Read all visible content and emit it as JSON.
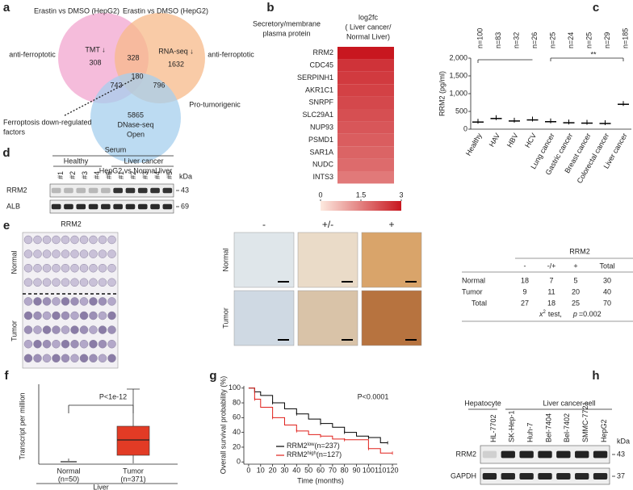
{
  "panels": {
    "a": {
      "label": "a",
      "set_left": "Erastin vs DMSO (HepG2)",
      "set_right": "Erastin vs DMSO (HepG2)",
      "left_role": "anti-ferroptotic",
      "right_role": "anti-ferroptotic",
      "left_name": "TMT ↓",
      "right_name": "RNA-seq ↓",
      "n_left": "308",
      "n_left_right": "328",
      "n_right": "1632",
      "n_center": "180",
      "n_left_bottom": "743",
      "n_right_bottom": "796",
      "n_bottom": "5865",
      "bottom_name": [
        "DNase-seq",
        "Open"
      ],
      "bottom_role": "Pro-tumorigenic",
      "set_bottom": "HepG2 vs Normal liver",
      "callout": [
        "Ferroptosis down-regulated",
        "factors"
      ]
    },
    "d": {
      "label": "d",
      "title": "Serum",
      "groups": [
        "Healthy",
        "Liver cancer"
      ],
      "lanes": [
        "#1",
        "#2",
        "#3",
        "#4",
        "#5",
        "#1",
        "#2",
        "#3",
        "#4",
        "#5"
      ],
      "unit": "kDa",
      "rows": [
        "RRM2",
        "ALB"
      ],
      "sizes": [
        "43",
        "69"
      ]
    },
    "e": {
      "label": "e",
      "tma_title": "RRM2",
      "tma_rows": [
        "Normal",
        "Tumor"
      ],
      "ihc_cols": [
        "-",
        "+/-",
        "+"
      ],
      "ihc_rows": [
        "Normal",
        "Tumor"
      ],
      "table": {
        "title": "RRM2",
        "columns": [
          "-",
          "-/+",
          "+",
          "Total"
        ],
        "rows": [
          [
            "Normal",
            18,
            7,
            5,
            30
          ],
          [
            "Tumor",
            9,
            11,
            20,
            40
          ],
          [
            "Total",
            27,
            18,
            25,
            70
          ]
        ],
        "note": {
          "stat": "x",
          "sup": "2",
          "test": "test,",
          "p": "p",
          "pval": "=0.002"
        }
      }
    },
    "f": {
      "label": "f",
      "ylabel": "Transcript per million",
      "annotation": "P<1e-12",
      "groups": [
        [
          "Normal",
          "(n=50)"
        ],
        [
          "Tumor",
          "(n=371)"
        ]
      ],
      "footer": "Liver"
    },
    "h": {
      "label": "h",
      "groups": [
        "Hepatocyte",
        "Liver cancer cell"
      ],
      "lanes": [
        "HL-7702",
        "SK-Hep-1",
        "Huh-7",
        "Bel-7404",
        "Bel-7402",
        "SMMC-7721",
        "HepG2"
      ],
      "unit": "kDa",
      "rows": [
        "RRM2",
        "GAPDH"
      ],
      "sizes": [
        "43",
        "37"
      ]
    }
  },
  "chart_data": [
    {
      "type": "heatmap",
      "panel_label": "b",
      "title": [
        "Secretory/membrane",
        "plasma protein"
      ],
      "colorbar_title": [
        "log2fc",
        "( Liver cancer/",
        "Normal Liver)"
      ],
      "categories": [
        "RRM2",
        "CDC45",
        "SERPINH1",
        "AKR1C1",
        "SNRPF",
        "SLC29A1",
        "NUP93",
        "PSMD1",
        "SAR1A",
        "NUDC",
        "INTS3"
      ],
      "values": [
        3,
        2.6,
        2.5,
        2.4,
        2.3,
        2.2,
        2.1,
        2.0,
        1.9,
        1.8,
        1.6
      ],
      "clim": [
        0,
        3
      ],
      "cticks": [
        0,
        1.5,
        3
      ],
      "colors": [
        "#fde9df",
        "#c8171f"
      ]
    },
    {
      "type": "dot",
      "panel_label": "c",
      "ylabel": "RRM2 (pg/ml)",
      "categories": [
        "Healthy",
        "HAV",
        "HBV",
        "HCV",
        "Lung cancer",
        "Gastric cancer",
        "Breast cancer",
        "Colorectal cancer",
        "Liver cancer"
      ],
      "n_labels": [
        "n=100",
        "n=83",
        "n=32",
        "n=26",
        "n=25",
        "n=24",
        "n=25",
        "n=29",
        "n=185"
      ],
      "values": [
        200,
        300,
        230,
        260,
        210,
        180,
        170,
        160,
        700
      ],
      "ylim": [
        0,
        2000
      ],
      "yticks": [
        0,
        500,
        {
          "value": 1000,
          "label": "1,000"
        },
        {
          "value": 1500,
          "label": "1,500"
        },
        {
          "value": 2000,
          "label": "2,000"
        }
      ],
      "annotation": "**",
      "color": "#000000"
    },
    {
      "type": "line",
      "panel_label": "g",
      "ylabel": "Overall survival probability (%)",
      "xlabel": "Time (months)",
      "annotation": "P<0.0001",
      "xlim": [
        -4,
        124
      ],
      "xticks": [
        0,
        10,
        20,
        30,
        40,
        50,
        60,
        70,
        80,
        90,
        100,
        110,
        120
      ],
      "ylim": [
        -3,
        103
      ],
      "yticks": [
        0,
        20,
        40,
        60,
        80,
        100
      ],
      "series": [
        {
          "name": "RRM2",
          "sup": "low",
          "n": "(n=237)",
          "color": "#000000",
          "x": [
            0,
            5,
            10,
            20,
            30,
            40,
            50,
            60,
            70,
            80,
            90,
            100,
            110,
            116
          ],
          "values": [
            100,
            95,
            90,
            80,
            72,
            65,
            58,
            52,
            47,
            40,
            35,
            33,
            26,
            26
          ]
        },
        {
          "name": "RRM2",
          "sup": "high",
          "n": "(n=127)",
          "color": "#e0201b",
          "x": [
            0,
            5,
            10,
            20,
            30,
            40,
            50,
            60,
            70,
            80,
            90,
            100,
            110,
            120
          ],
          "values": [
            100,
            85,
            74,
            60,
            50,
            42,
            37,
            35,
            31,
            30,
            30,
            18,
            12,
            12
          ]
        }
      ]
    }
  ]
}
